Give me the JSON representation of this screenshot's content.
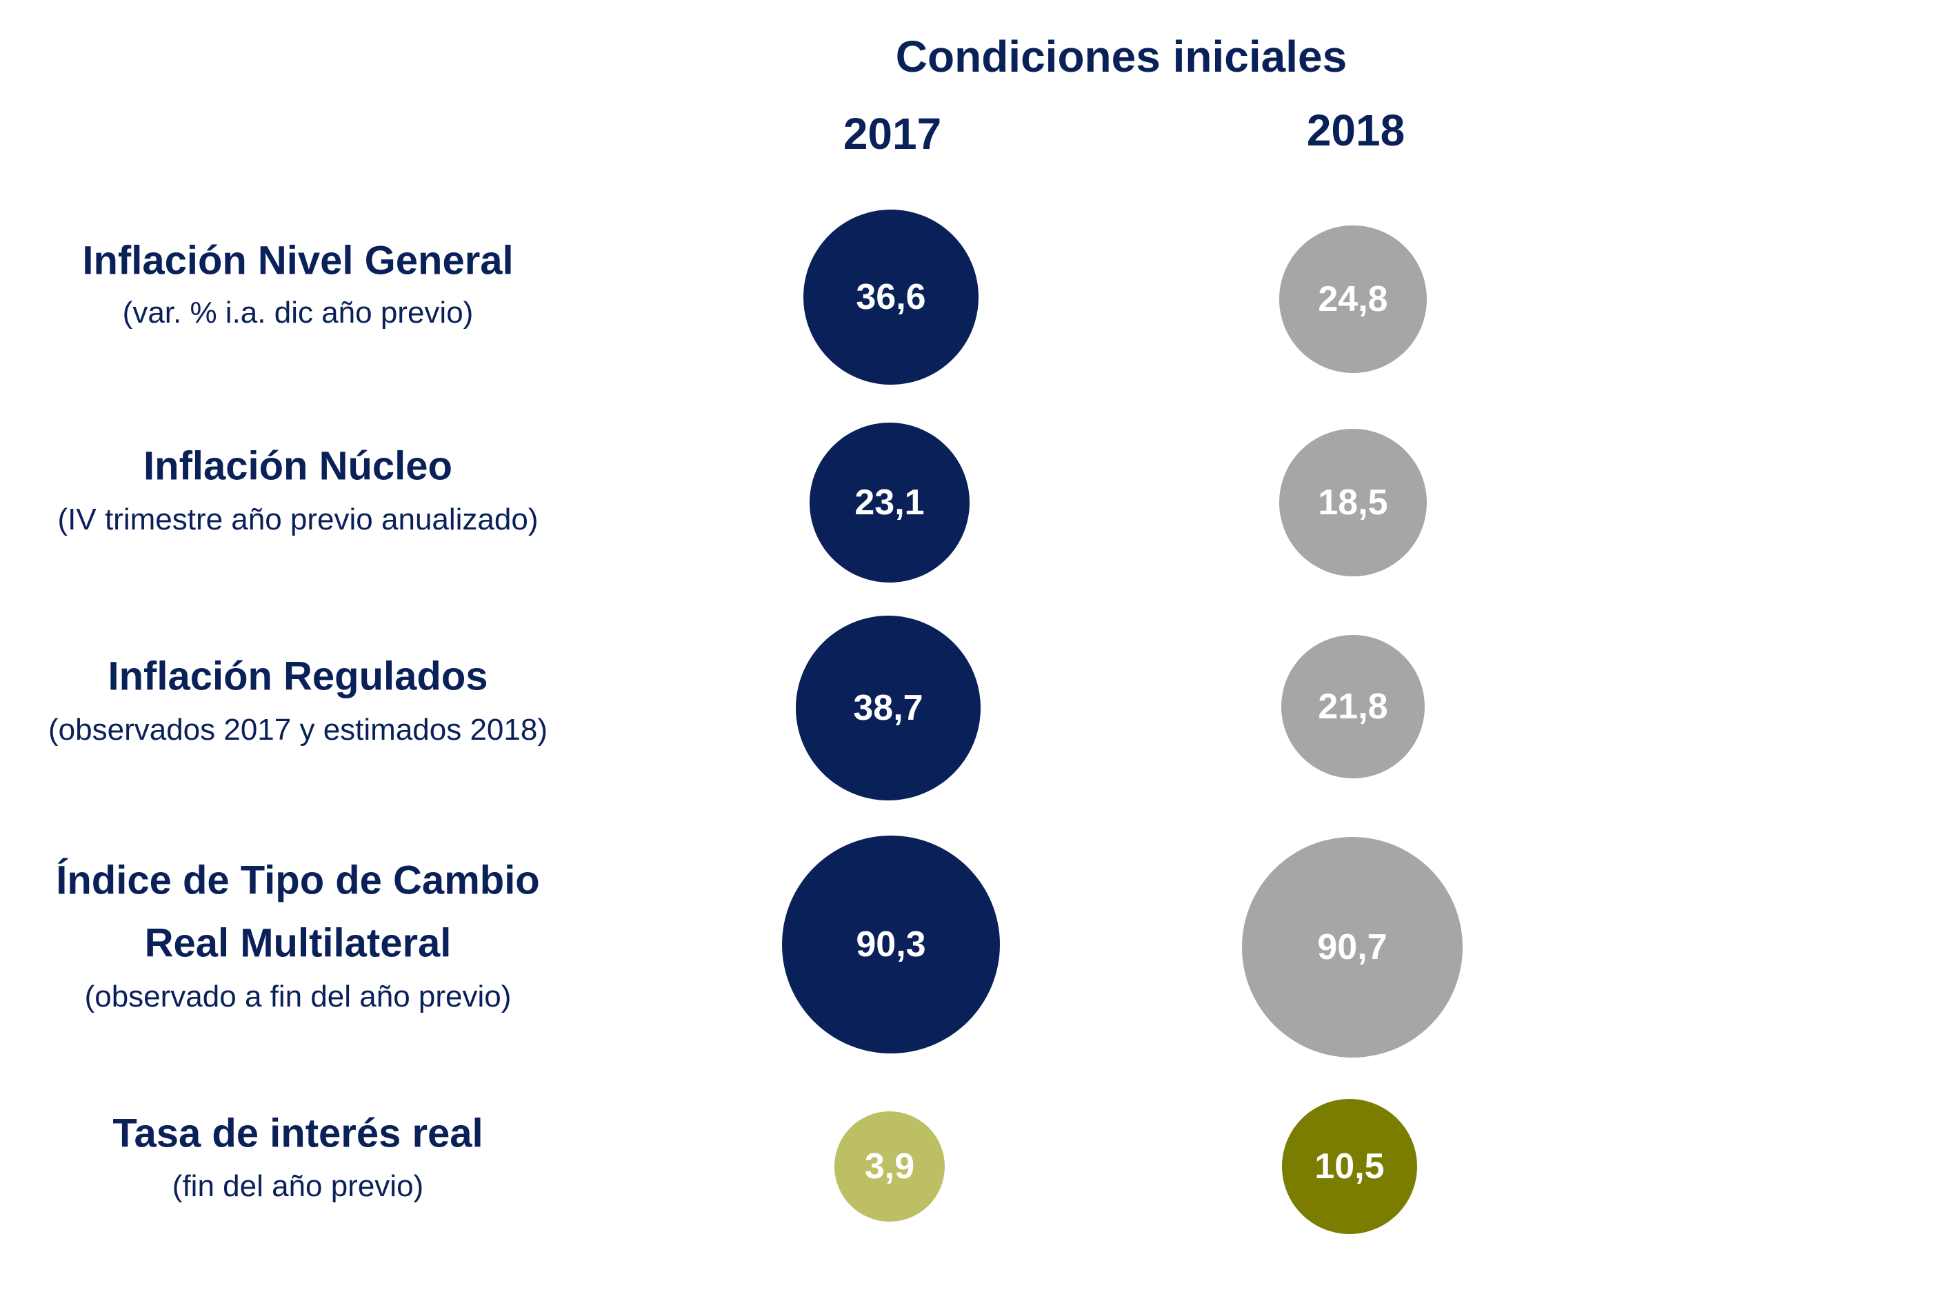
{
  "header": {
    "title": "Condiciones iniciales",
    "year_1": "2017",
    "year_2": "2018"
  },
  "colors": {
    "navy": "#0a2059",
    "gray": "#a6a6a6",
    "light_olive": "#bcbf64",
    "olive": "#7a7d00"
  },
  "rows": [
    {
      "title": "Inflación Nivel General",
      "subtitle": "(var. % i.a. dic año previo)",
      "v2017": "36,6",
      "v2018": "24,8"
    },
    {
      "title": "Inflación Núcleo",
      "subtitle": "(IV trimestre  año previo anualizado)",
      "v2017": "23,1",
      "v2018": "18,5"
    },
    {
      "title": "Inflación Regulados",
      "subtitle": "(observados 2017 y estimados 2018)",
      "v2017": "38,7",
      "v2018": "21,8"
    },
    {
      "title_line1": "Índice de Tipo de Cambio",
      "title_line2": "Real Multilateral",
      "subtitle": "(observado a fin del año previo)",
      "v2017": "90,3",
      "v2018": "90,7"
    },
    {
      "title": "Tasa de interés real",
      "subtitle": "(fin del año previo)",
      "v2017": "3,9",
      "v2018": "10,5"
    }
  ]
}
